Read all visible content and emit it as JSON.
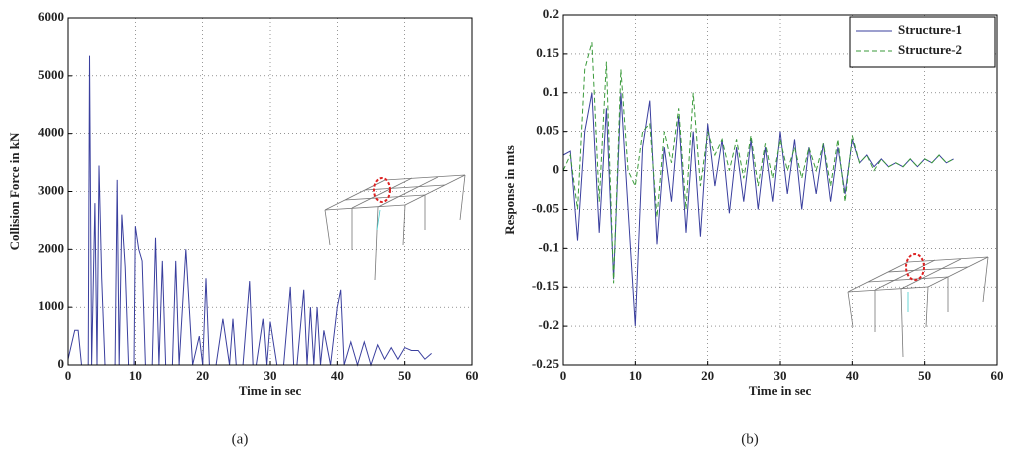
{
  "chart_data": [
    {
      "type": "line",
      "caption": "(a)",
      "xlabel": "Time in sec",
      "ylabel": "Collision Force in kN",
      "xlim": [
        0,
        60
      ],
      "xticks": [
        0,
        10,
        20,
        30,
        40,
        50,
        60
      ],
      "ylim": [
        0,
        6000
      ],
      "yticks": [
        0,
        1000,
        2000,
        3000,
        4000,
        5000,
        6000
      ],
      "grid": true,
      "x": [
        0,
        1,
        1.5,
        2,
        3,
        3.2,
        3.5,
        4,
        4.3,
        4.6,
        5,
        5.5,
        6,
        7,
        7.3,
        7.6,
        8,
        8.5,
        9,
        9.8,
        10,
        10.5,
        11,
        11.5,
        12.5,
        13,
        13.5,
        14,
        14.5,
        15.5,
        16,
        16.5,
        17.5,
        18,
        18.5,
        19.5,
        20,
        20.5,
        21,
        22,
        23,
        24,
        24.5,
        25,
        26,
        27,
        27.5,
        28,
        29,
        29.5,
        30,
        31,
        32,
        33,
        33.5,
        34,
        35,
        35.5,
        36,
        36.5,
        37,
        37.5,
        38,
        39,
        40,
        40.5,
        41,
        42,
        43,
        44,
        45,
        46,
        47,
        48,
        49,
        50,
        51,
        52,
        53,
        54
      ],
      "series": [
        {
          "color": "#3a3f9e",
          "style": "solid",
          "values": [
            100,
            600,
            600,
            0,
            0,
            5350,
            0,
            2800,
            0,
            3450,
            1500,
            0,
            0,
            0,
            3200,
            0,
            2600,
            1700,
            0,
            0,
            2400,
            2000,
            1800,
            0,
            0,
            2200,
            0,
            1800,
            0,
            0,
            1800,
            0,
            2000,
            1000,
            0,
            500,
            0,
            1500,
            0,
            0,
            800,
            0,
            800,
            0,
            0,
            1450,
            0,
            0,
            800,
            0,
            750,
            0,
            0,
            1350,
            0,
            0,
            1300,
            0,
            1000,
            0,
            1000,
            0,
            600,
            0,
            1000,
            1300,
            0,
            400,
            0,
            400,
            0,
            350,
            100,
            300,
            100,
            300,
            250,
            250,
            100,
            200
          ]
        }
      ]
    },
    {
      "type": "line",
      "caption": "(b)",
      "xlabel": "Time in sec",
      "ylabel": "Response in mts",
      "xlim": [
        0,
        60
      ],
      "xticks": [
        0,
        10,
        20,
        30,
        40,
        50,
        60
      ],
      "ylim": [
        -0.25,
        0.2
      ],
      "yticks": [
        -0.25,
        -0.2,
        -0.15,
        -0.1,
        -0.05,
        0,
        0.05,
        0.1,
        0.15,
        0.2
      ],
      "grid": true,
      "legend": "upper right",
      "x": [
        0,
        1,
        2,
        3,
        4,
        5,
        6,
        7,
        8,
        9,
        10,
        11,
        12,
        13,
        14,
        15,
        16,
        17,
        18,
        19,
        20,
        21,
        22,
        23,
        24,
        25,
        26,
        27,
        28,
        29,
        30,
        31,
        32,
        33,
        34,
        35,
        36,
        37,
        38,
        39,
        40,
        41,
        42,
        43,
        44,
        45,
        46,
        47,
        48,
        49,
        50,
        51,
        52,
        53,
        54
      ],
      "series": [
        {
          "name": "Structure-1",
          "color": "#3a3f9e",
          "style": "solid",
          "values": [
            0.02,
            0.025,
            -0.09,
            0.05,
            0.1,
            -0.08,
            0.08,
            -0.14,
            0.1,
            -0.05,
            -0.2,
            0.03,
            0.09,
            -0.095,
            0.03,
            -0.04,
            0.07,
            -0.08,
            0.05,
            -0.085,
            0.06,
            -0.02,
            0.04,
            -0.055,
            0.03,
            -0.04,
            0.04,
            -0.05,
            0.03,
            -0.04,
            0.05,
            -0.03,
            0.04,
            -0.05,
            0.03,
            -0.03,
            0.035,
            -0.04,
            0.03,
            -0.03,
            0.04,
            0.01,
            0.02,
            0.005,
            0.015,
            0.005,
            0.01,
            0.005,
            0.015,
            0.005,
            0.015,
            0.01,
            0.02,
            0.01,
            0.015
          ]
        },
        {
          "name": "Structure-2",
          "color": "#3a9a3a",
          "style": "dashed",
          "values": [
            0.0,
            0.02,
            -0.05,
            0.13,
            0.165,
            -0.04,
            0.14,
            -0.145,
            0.13,
            0.0,
            -0.02,
            0.05,
            0.06,
            -0.06,
            0.05,
            0.01,
            0.08,
            -0.05,
            0.1,
            -0.02,
            0.05,
            0.02,
            0.04,
            0.0,
            0.04,
            -0.01,
            0.045,
            -0.02,
            0.035,
            -0.01,
            0.04,
            0.0,
            0.03,
            -0.01,
            0.03,
            0.0,
            0.035,
            -0.02,
            0.04,
            -0.04,
            0.045,
            0.01,
            0.02,
            0.0,
            0.015,
            0.005,
            0.01,
            0.005,
            0.015,
            0.005,
            0.015,
            0.01,
            0.02,
            0.01,
            0.015
          ]
        }
      ]
    }
  ]
}
